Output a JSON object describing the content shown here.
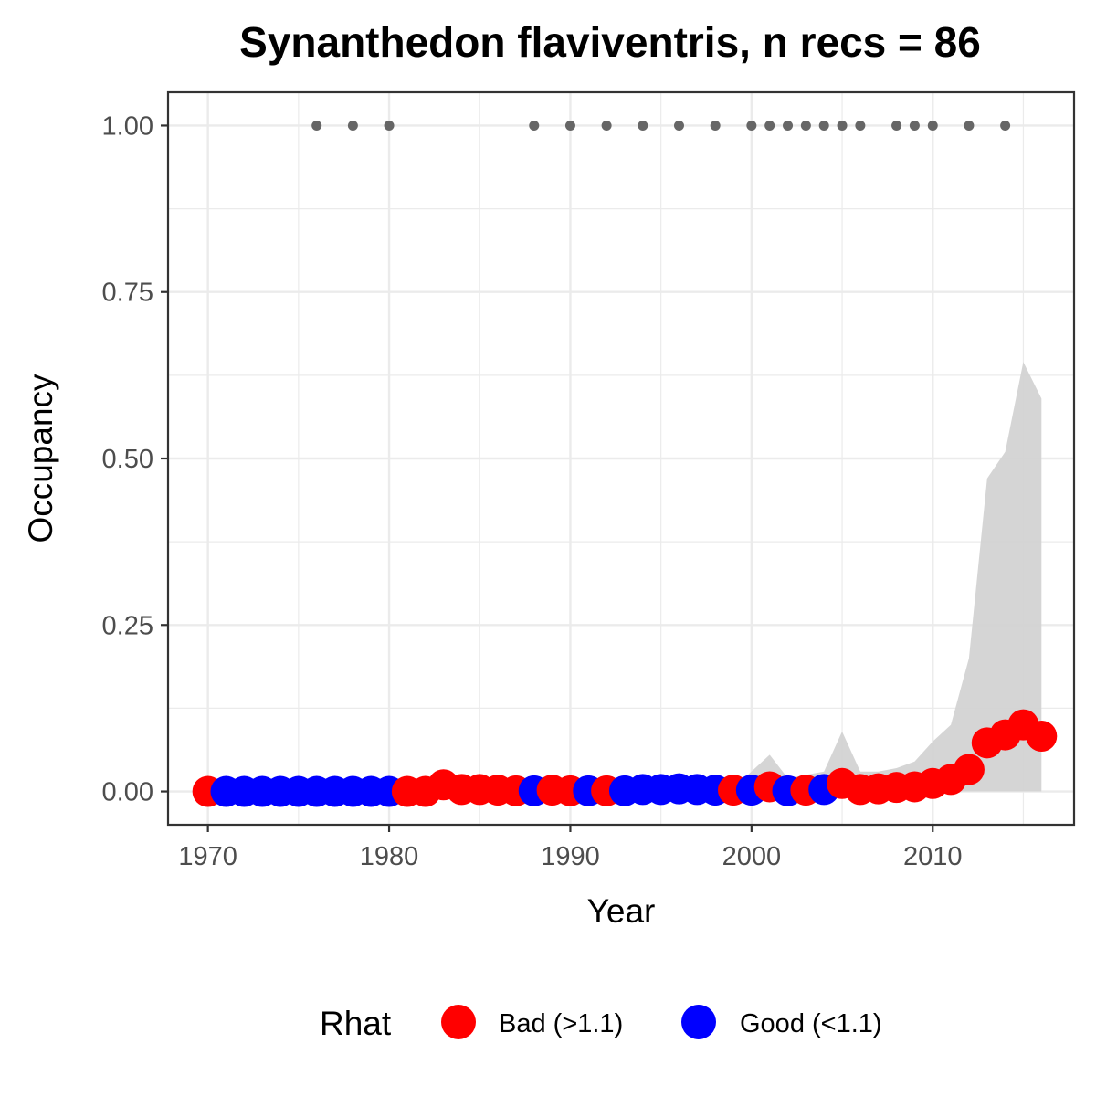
{
  "chart_data": {
    "type": "scatter",
    "title": "Synanthedon flaviventris, n recs = 86",
    "xlabel": "Year",
    "ylabel": "Occupancy",
    "xlim": [
      1967.8,
      2017.8
    ],
    "ylim": [
      -0.05,
      1.05
    ],
    "x_ticks": [
      1970,
      1980,
      1990,
      2000,
      2010
    ],
    "x_tick_labels": [
      "1970",
      "1980",
      "1990",
      "2000",
      "2010"
    ],
    "y_ticks": [
      0,
      0.25,
      0.5,
      0.75,
      1
    ],
    "y_tick_labels": [
      "0.00",
      "0.25",
      "0.50",
      "0.75",
      "1.00"
    ],
    "grid": true,
    "legend": {
      "title": "Rhat",
      "position": "bottom",
      "entries": [
        {
          "label": "Bad (>1.1)",
          "color": "#ff0000"
        },
        {
          "label": "Good (<1.1)",
          "color": "#0000ff"
        }
      ]
    },
    "colors": {
      "bad": "#ff0000",
      "good": "#0000ff",
      "record_dots": "#666666",
      "ribbon": "#d3d3d3"
    },
    "occupancy": [
      {
        "year": 1970,
        "value": 0.0,
        "rhat": "bad"
      },
      {
        "year": 1971,
        "value": 0.0,
        "rhat": "good"
      },
      {
        "year": 1972,
        "value": 0.0,
        "rhat": "good"
      },
      {
        "year": 1973,
        "value": 0.0,
        "rhat": "good"
      },
      {
        "year": 1974,
        "value": 0.0,
        "rhat": "good"
      },
      {
        "year": 1975,
        "value": 0.0,
        "rhat": "good"
      },
      {
        "year": 1976,
        "value": 0.0,
        "rhat": "good"
      },
      {
        "year": 1977,
        "value": 0.0,
        "rhat": "good"
      },
      {
        "year": 1978,
        "value": 0.0,
        "rhat": "good"
      },
      {
        "year": 1979,
        "value": 0.0,
        "rhat": "good"
      },
      {
        "year": 1980,
        "value": 0.0,
        "rhat": "good"
      },
      {
        "year": 1981,
        "value": 0.0,
        "rhat": "bad"
      },
      {
        "year": 1982,
        "value": 0.0,
        "rhat": "bad"
      },
      {
        "year": 1983,
        "value": 0.01,
        "rhat": "bad"
      },
      {
        "year": 1984,
        "value": 0.003,
        "rhat": "bad"
      },
      {
        "year": 1985,
        "value": 0.003,
        "rhat": "bad"
      },
      {
        "year": 1986,
        "value": 0.002,
        "rhat": "bad"
      },
      {
        "year": 1987,
        "value": 0.001,
        "rhat": "bad"
      },
      {
        "year": 1988,
        "value": 0.001,
        "rhat": "good"
      },
      {
        "year": 1989,
        "value": 0.002,
        "rhat": "bad"
      },
      {
        "year": 1990,
        "value": 0.001,
        "rhat": "bad"
      },
      {
        "year": 1991,
        "value": 0.001,
        "rhat": "good"
      },
      {
        "year": 1992,
        "value": 0.001,
        "rhat": "bad"
      },
      {
        "year": 1993,
        "value": 0.001,
        "rhat": "good"
      },
      {
        "year": 1994,
        "value": 0.003,
        "rhat": "good"
      },
      {
        "year": 1995,
        "value": 0.003,
        "rhat": "good"
      },
      {
        "year": 1996,
        "value": 0.004,
        "rhat": "good"
      },
      {
        "year": 1997,
        "value": 0.003,
        "rhat": "good"
      },
      {
        "year": 1998,
        "value": 0.002,
        "rhat": "good"
      },
      {
        "year": 1999,
        "value": 0.002,
        "rhat": "bad"
      },
      {
        "year": 2000,
        "value": 0.002,
        "rhat": "good"
      },
      {
        "year": 2001,
        "value": 0.007,
        "rhat": "bad"
      },
      {
        "year": 2002,
        "value": 0.001,
        "rhat": "good"
      },
      {
        "year": 2003,
        "value": 0.002,
        "rhat": "bad"
      },
      {
        "year": 2004,
        "value": 0.003,
        "rhat": "good"
      },
      {
        "year": 2005,
        "value": 0.012,
        "rhat": "bad"
      },
      {
        "year": 2006,
        "value": 0.003,
        "rhat": "bad"
      },
      {
        "year": 2007,
        "value": 0.004,
        "rhat": "bad"
      },
      {
        "year": 2008,
        "value": 0.006,
        "rhat": "bad"
      },
      {
        "year": 2009,
        "value": 0.007,
        "rhat": "bad"
      },
      {
        "year": 2010,
        "value": 0.012,
        "rhat": "bad"
      },
      {
        "year": 2011,
        "value": 0.018,
        "rhat": "bad"
      },
      {
        "year": 2012,
        "value": 0.033,
        "rhat": "bad"
      },
      {
        "year": 2013,
        "value": 0.073,
        "rhat": "bad"
      },
      {
        "year": 2014,
        "value": 0.085,
        "rhat": "bad"
      },
      {
        "year": 2015,
        "value": 0.1,
        "rhat": "bad"
      },
      {
        "year": 2016,
        "value": 0.083,
        "rhat": "bad"
      }
    ],
    "credible_interval": [
      {
        "year": 1970,
        "lower": 0,
        "upper": 0.0
      },
      {
        "year": 1999,
        "lower": 0,
        "upper": 0.005
      },
      {
        "year": 2001,
        "lower": 0,
        "upper": 0.055
      },
      {
        "year": 2002,
        "lower": 0,
        "upper": 0.02
      },
      {
        "year": 2004,
        "lower": 0,
        "upper": 0.03
      },
      {
        "year": 2005,
        "lower": 0,
        "upper": 0.09
      },
      {
        "year": 2006,
        "lower": 0,
        "upper": 0.03
      },
      {
        "year": 2007,
        "lower": 0,
        "upper": 0.03
      },
      {
        "year": 2008,
        "lower": 0,
        "upper": 0.035
      },
      {
        "year": 2009,
        "lower": 0,
        "upper": 0.045
      },
      {
        "year": 2010,
        "lower": 0,
        "upper": 0.075
      },
      {
        "year": 2011,
        "lower": 0,
        "upper": 0.1
      },
      {
        "year": 2012,
        "lower": 0,
        "upper": 0.2
      },
      {
        "year": 2013,
        "lower": 0,
        "upper": 0.47
      },
      {
        "year": 2014,
        "lower": 0,
        "upper": 0.51
      },
      {
        "year": 2015,
        "lower": 0,
        "upper": 0.645
      },
      {
        "year": 2016,
        "lower": 0,
        "upper": 0.59
      }
    ],
    "record_years": [
      1976,
      1978,
      1980,
      1988,
      1990,
      1992,
      1994,
      1996,
      1998,
      2000,
      2001,
      2002,
      2003,
      2004,
      2005,
      2006,
      2008,
      2009,
      2010,
      2012,
      2014
    ]
  }
}
